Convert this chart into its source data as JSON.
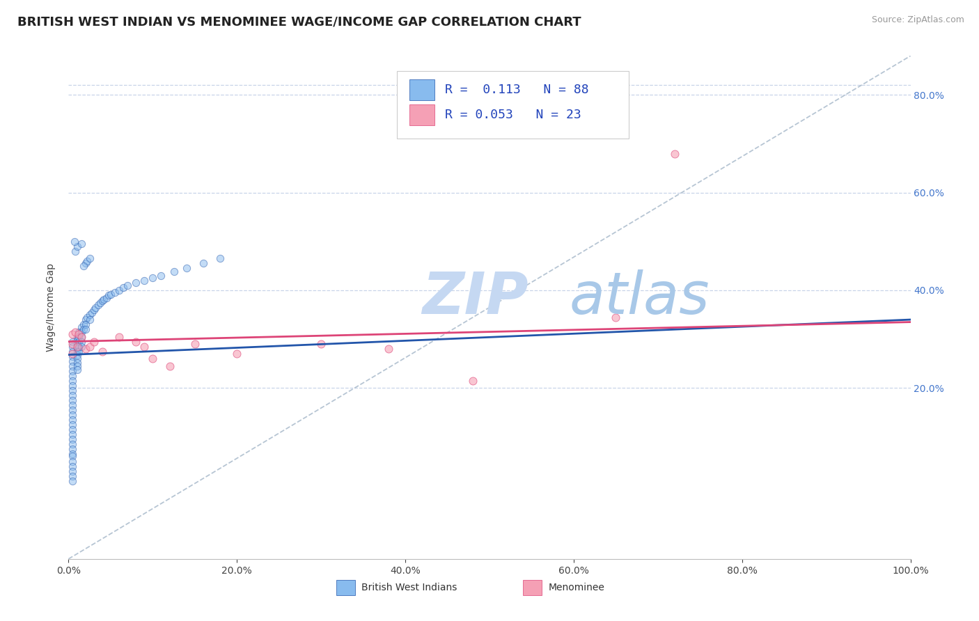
{
  "title": "BRITISH WEST INDIAN VS MENOMINEE WAGE/INCOME GAP CORRELATION CHART",
  "source": "Source: ZipAtlas.com",
  "ylabel": "Wage/Income Gap",
  "xlim": [
    0.0,
    1.0
  ],
  "ylim": [
    -0.15,
    0.88
  ],
  "yticks_right": [
    0.2,
    0.4,
    0.6,
    0.8
  ],
  "ytick_labels_right": [
    "20.0%",
    "40.0%",
    "60.0%",
    "80.0%"
  ],
  "xtick_labels": [
    "0.0%",
    "20.0%",
    "40.0%",
    "60.0%",
    "80.0%",
    "100.0%"
  ],
  "r_bwi": 0.113,
  "n_bwi": 88,
  "r_men": 0.053,
  "n_men": 23,
  "color_bwi": "#88bbee",
  "color_men": "#f5a0b5",
  "color_trend_bwi": "#2255aa",
  "color_trend_men": "#dd4477",
  "background_color": "#ffffff",
  "grid_color": "#c8d4e8",
  "watermark": "ZIPatlas",
  "watermark_color_zip": "#c5d8f2",
  "watermark_color_atlas": "#a8c8e8",
  "title_fontsize": 13,
  "axis_label_fontsize": 10,
  "tick_fontsize": 10,
  "legend_fontsize": 13,
  "scatter_size": 55,
  "scatter_alpha": 0.5,
  "bwi_x": [
    0.005,
    0.005,
    0.005,
    0.005,
    0.005,
    0.005,
    0.005,
    0.005,
    0.005,
    0.005,
    0.005,
    0.005,
    0.005,
    0.005,
    0.005,
    0.005,
    0.005,
    0.005,
    0.005,
    0.005,
    0.005,
    0.005,
    0.005,
    0.005,
    0.005,
    0.005,
    0.005,
    0.005,
    0.005,
    0.005,
    0.01,
    0.01,
    0.01,
    0.01,
    0.01,
    0.01,
    0.01,
    0.01,
    0.01,
    0.01,
    0.012,
    0.012,
    0.012,
    0.012,
    0.012,
    0.015,
    0.015,
    0.015,
    0.015,
    0.015,
    0.018,
    0.018,
    0.02,
    0.02,
    0.02,
    0.022,
    0.025,
    0.025,
    0.028,
    0.03,
    0.032,
    0.035,
    0.038,
    0.04,
    0.042,
    0.045,
    0.048,
    0.05,
    0.055,
    0.06,
    0.065,
    0.07,
    0.08,
    0.09,
    0.1,
    0.11,
    0.125,
    0.14,
    0.16,
    0.18,
    0.02,
    0.022,
    0.018,
    0.025,
    0.008,
    0.01,
    0.015,
    0.007
  ],
  "bwi_y": [
    0.295,
    0.285,
    0.275,
    0.265,
    0.255,
    0.245,
    0.235,
    0.225,
    0.215,
    0.205,
    0.195,
    0.185,
    0.175,
    0.165,
    0.155,
    0.145,
    0.135,
    0.125,
    0.115,
    0.105,
    0.095,
    0.085,
    0.075,
    0.065,
    0.06,
    0.05,
    0.04,
    0.03,
    0.02,
    0.01,
    0.305,
    0.298,
    0.29,
    0.282,
    0.275,
    0.268,
    0.26,
    0.252,
    0.245,
    0.238,
    0.315,
    0.305,
    0.295,
    0.285,
    0.275,
    0.325,
    0.315,
    0.305,
    0.295,
    0.285,
    0.33,
    0.32,
    0.34,
    0.33,
    0.32,
    0.345,
    0.35,
    0.34,
    0.355,
    0.36,
    0.365,
    0.37,
    0.375,
    0.378,
    0.382,
    0.385,
    0.39,
    0.392,
    0.395,
    0.4,
    0.405,
    0.41,
    0.415,
    0.42,
    0.425,
    0.43,
    0.438,
    0.445,
    0.455,
    0.465,
    0.455,
    0.46,
    0.45,
    0.465,
    0.48,
    0.49,
    0.495,
    0.5
  ],
  "men_x": [
    0.005,
    0.005,
    0.005,
    0.008,
    0.01,
    0.012,
    0.015,
    0.02,
    0.025,
    0.03,
    0.04,
    0.06,
    0.08,
    0.09,
    0.1,
    0.12,
    0.15,
    0.2,
    0.3,
    0.38,
    0.48,
    0.65,
    0.72
  ],
  "men_y": [
    0.31,
    0.29,
    0.27,
    0.315,
    0.285,
    0.31,
    0.305,
    0.28,
    0.285,
    0.295,
    0.275,
    0.305,
    0.295,
    0.285,
    0.26,
    0.245,
    0.29,
    0.27,
    0.29,
    0.28,
    0.215,
    0.345,
    0.68
  ],
  "legend_label_bwi": "British West Indians",
  "legend_label_men": "Menominee"
}
